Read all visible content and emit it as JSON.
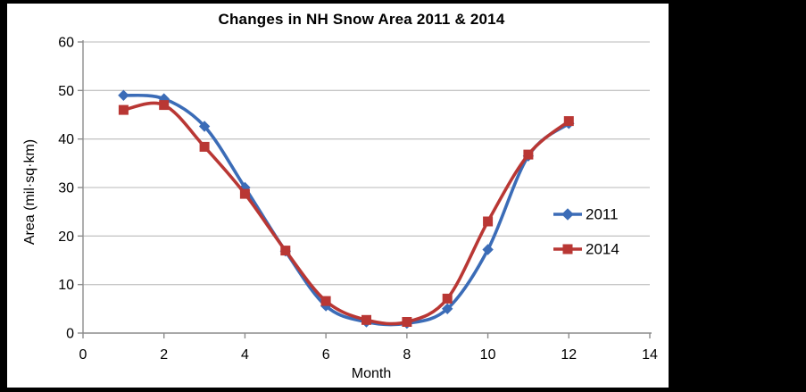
{
  "chart_data": {
    "type": "line",
    "title": "Changes in NH Snow Area 2011 & 2014",
    "xlabel": "Month",
    "ylabel": "Area (mil·sq·km)",
    "xlim": [
      0,
      14
    ],
    "ylim": [
      0,
      60
    ],
    "x_ticks": [
      0,
      2,
      4,
      6,
      8,
      10,
      12,
      14
    ],
    "y_ticks": [
      0,
      10,
      20,
      30,
      40,
      50,
      60
    ],
    "grid": "horizontal",
    "legend_position": "inside-right",
    "x": [
      1,
      2,
      3,
      4,
      5,
      6,
      7,
      8,
      9,
      10,
      11,
      12
    ],
    "series": [
      {
        "name": "2011",
        "marker": "diamond",
        "color": "#3b6cb7",
        "values": [
          49.0,
          48.3,
          42.6,
          30.0,
          16.9,
          5.6,
          2.3,
          2.0,
          5.0,
          17.2,
          36.5,
          43.2
        ]
      },
      {
        "name": "2014",
        "marker": "square",
        "color": "#b93734",
        "values": [
          46.0,
          47.0,
          38.4,
          28.7,
          17.0,
          6.6,
          2.7,
          2.3,
          7.1,
          23.0,
          36.8,
          43.7
        ]
      }
    ],
    "colors": {
      "gridline": "#c6c6c6",
      "axis": "#8c8c8c",
      "tick_label": "#000000",
      "background": "#ffffff",
      "matte": "#000000"
    }
  }
}
